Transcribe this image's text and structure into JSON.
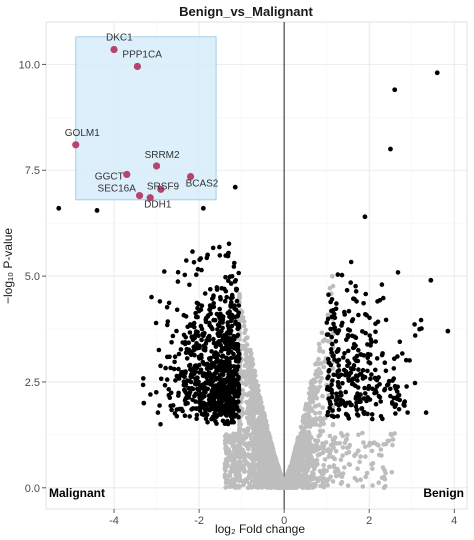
{
  "chart_data": {
    "type": "scatter",
    "title": "Benign_vs_Malignant",
    "xlabel": "log₂ Fold change",
    "ylabel": "−log₁₀ P-value",
    "xlim": [
      -5.6,
      4.3
    ],
    "ylim": [
      -0.5,
      11.0
    ],
    "x_ticks": [
      -4,
      -2,
      0,
      2,
      4
    ],
    "x_tick_labels": [
      "-4",
      "-2",
      "0",
      "2",
      "4"
    ],
    "y_ticks": [
      0,
      2.5,
      5,
      7.5,
      10
    ],
    "y_tick_labels": [
      "0.0",
      "2.5",
      "5.0",
      "7.5",
      "10.0"
    ],
    "grid": true,
    "corner_labels": {
      "left": "Malignant",
      "right": "Benign"
    },
    "highlight_region": {
      "x": [
        -4.9,
        -1.6
      ],
      "y": [
        6.8,
        10.65
      ]
    },
    "colors": {
      "significant": "#000000",
      "nonsignificant": "#bdbdbd",
      "highlight_points": "#b5446e",
      "highlight_region": "#d6ecfa",
      "highlight_border": "#90c4e4"
    },
    "highlighted_genes": [
      {
        "name": "DKC1",
        "x": -4.0,
        "y": 10.35
      },
      {
        "name": "PPP1CA",
        "x": -3.45,
        "y": 9.95
      },
      {
        "name": "GOLM1",
        "x": -4.9,
        "y": 8.1
      },
      {
        "name": "SRRM2",
        "x": -3.0,
        "y": 7.6
      },
      {
        "name": "GGCT",
        "x": -3.7,
        "y": 7.4
      },
      {
        "name": "BCAS2",
        "x": -2.2,
        "y": 7.35
      },
      {
        "name": "SRSF9",
        "x": -2.9,
        "y": 7.05
      },
      {
        "name": "SEC16A",
        "x": -3.4,
        "y": 6.9
      },
      {
        "name": "DDH1",
        "x": -3.15,
        "y": 6.85
      }
    ],
    "outlier_points": [
      {
        "x": 3.6,
        "y": 9.8
      },
      {
        "x": 2.6,
        "y": 9.4
      },
      {
        "x": 2.5,
        "y": 8.0
      },
      {
        "x": -1.15,
        "y": 7.1
      },
      {
        "x": -5.3,
        "y": 6.6
      },
      {
        "x": -4.4,
        "y": 6.55
      },
      {
        "x": -1.9,
        "y": 6.6
      },
      {
        "x": 1.9,
        "y": 6.4
      },
      {
        "x": -1.8,
        "y": 5.5
      },
      {
        "x": 3.85,
        "y": 3.7
      },
      {
        "x": 3.45,
        "y": 4.9
      },
      {
        "x": -3.3,
        "y": 2.0
      }
    ]
  }
}
